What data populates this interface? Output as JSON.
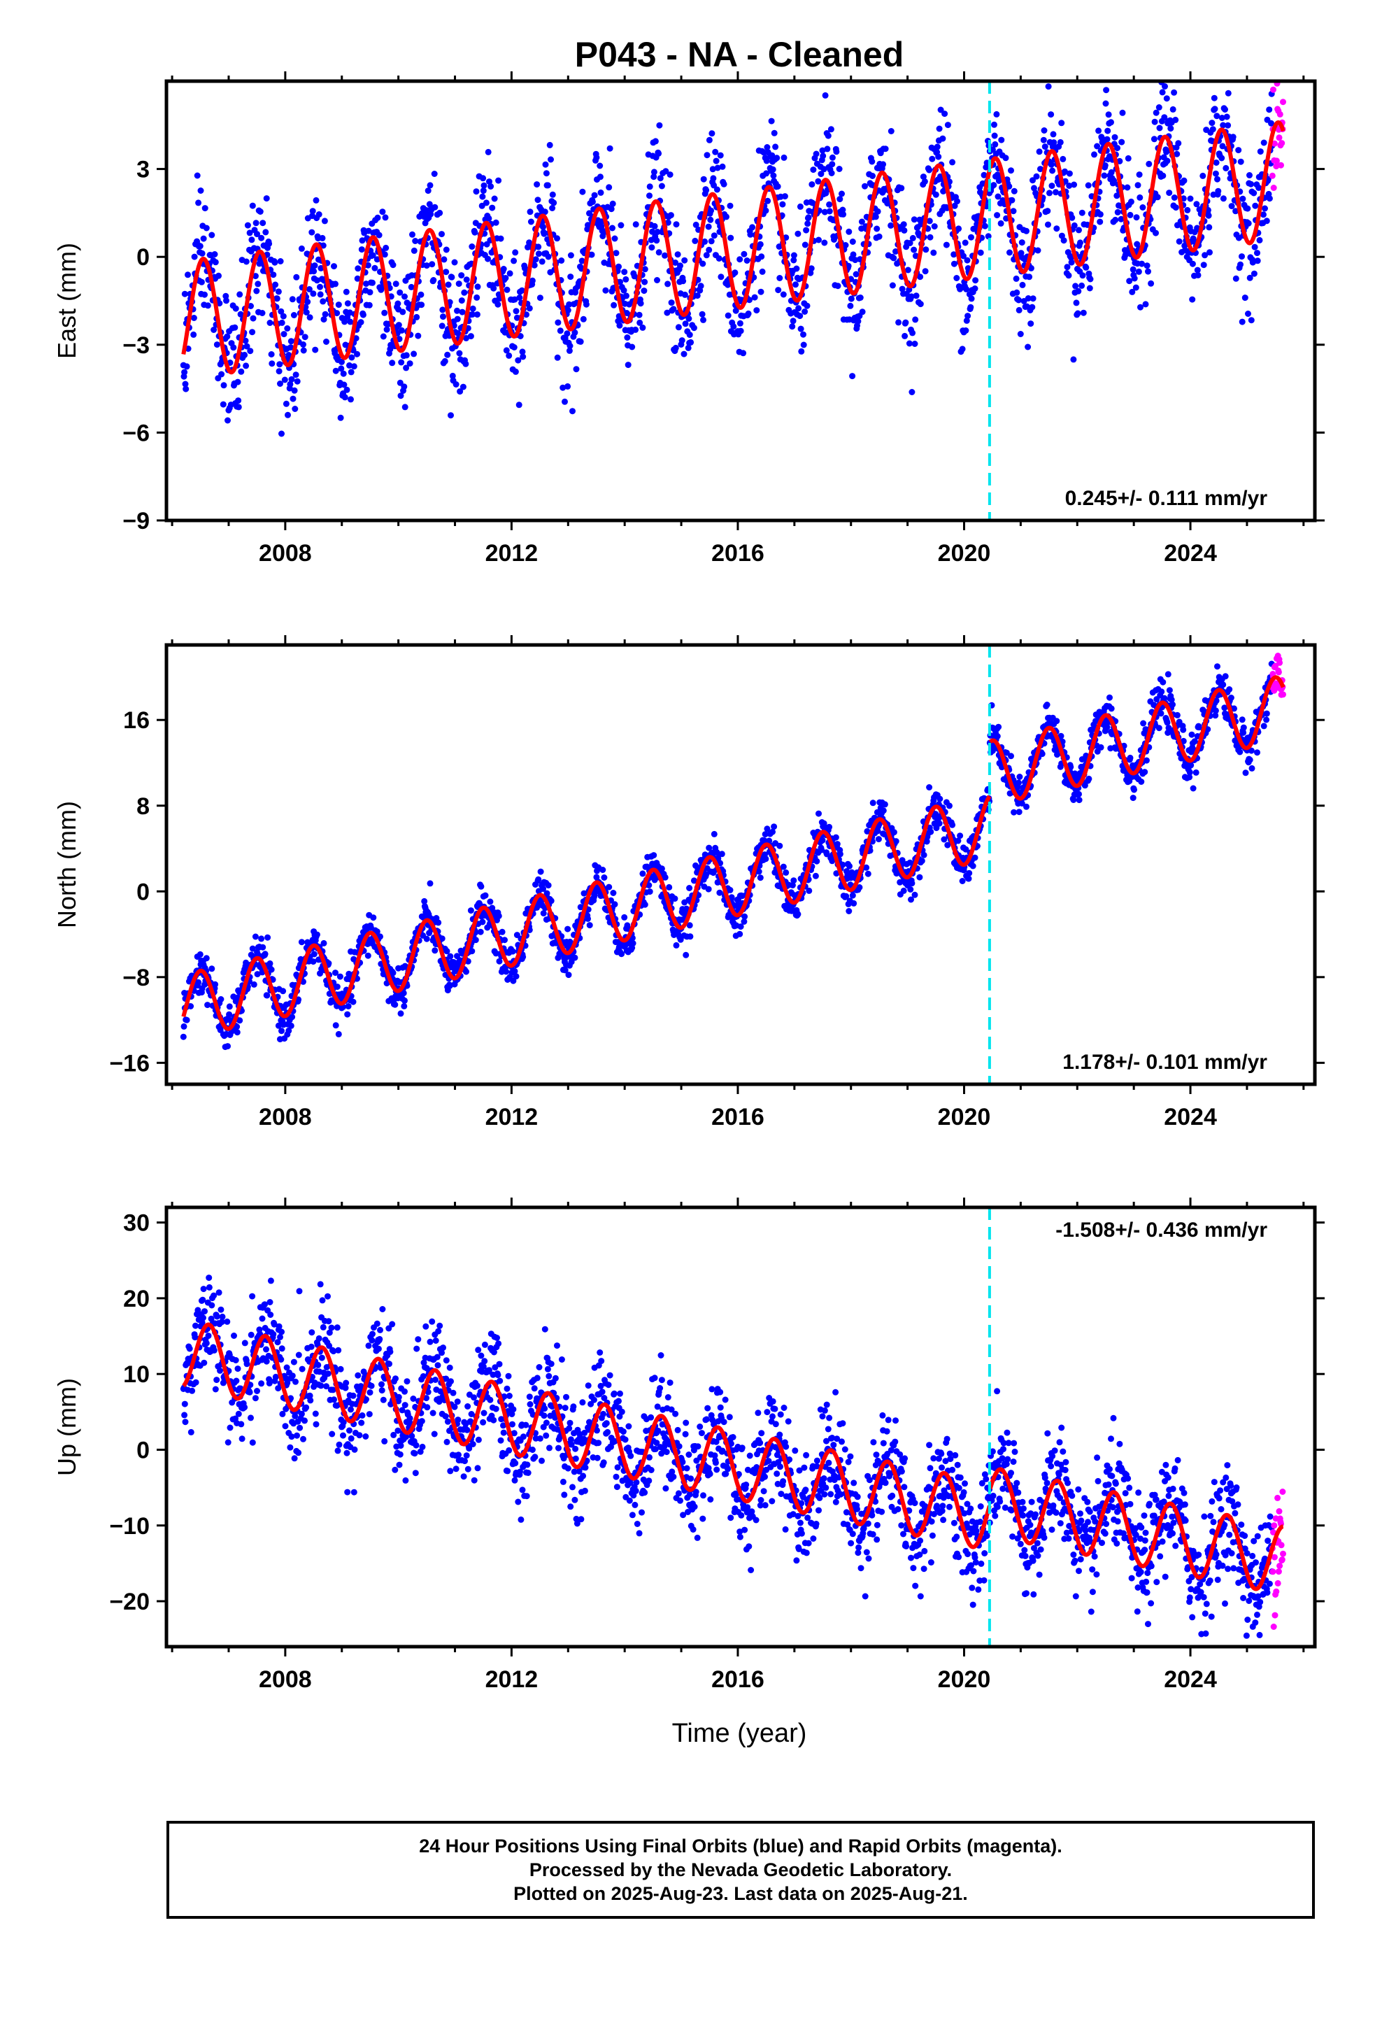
{
  "title": "P043  - NA - Cleaned",
  "colors": {
    "final_orbits": "#0000ff",
    "rapid_orbits": "#ff00ff",
    "model_fit": "#ff0000",
    "event_line": "#00e5ee",
    "frame": "#000000"
  },
  "x_axis": {
    "label": "Time (year)",
    "ticks": [
      2008,
      2012,
      2016,
      2020,
      2024
    ],
    "range": [
      2005.9,
      2026.2
    ]
  },
  "chart_data": [
    {
      "type": "scatter",
      "panel": "east",
      "ylabel": "East (mm)",
      "yticks": [
        3,
        0,
        -3,
        -6,
        -9
      ],
      "ylim": [
        -9,
        6
      ],
      "xlim": [
        2005.9,
        2026.2
      ],
      "rate_annotation": "0.245+/- 0.111 mm/yr",
      "annotation_position": "bottom-right",
      "event_line_year": 2020.45,
      "model": {
        "intercept_2006": -2.2,
        "rate_mm_per_yr": 0.245,
        "offset_at_event": 0.0,
        "annual_amplitude": 2.0,
        "annual_phase_peak_year_fraction": 0.55,
        "scatter_sd": 1.1
      },
      "rapid_points_range": [
        2025.45,
        2025.64
      ],
      "series": [
        {
          "name": "Final Orbits",
          "color": "#0000ff",
          "x_range": [
            2006.2,
            2025.45
          ]
        },
        {
          "name": "Rapid Orbits",
          "color": "#ff00ff",
          "x_range": [
            2025.45,
            2025.64
          ]
        },
        {
          "name": "Model",
          "color": "#ff0000",
          "x_range": [
            2006.2,
            2025.64
          ]
        }
      ]
    },
    {
      "type": "scatter",
      "panel": "north",
      "ylabel": "North (mm)",
      "yticks": [
        16,
        8,
        0,
        -8,
        -16
      ],
      "ylim": [
        -18,
        23
      ],
      "xlim": [
        2005.9,
        2026.2
      ],
      "rate_annotation": "1.178+/- 0.101 mm/yr",
      "annotation_position": "bottom-right",
      "event_line_year": 2020.45,
      "model": {
        "intercept_2006": -11.0,
        "rate_mm_per_yr": 1.178,
        "offset_at_event": 5.0,
        "annual_amplitude": 3.0,
        "annual_phase_peak_year_fraction": 0.5,
        "scatter_sd": 1.0
      },
      "rapid_points_range": [
        2025.45,
        2025.64
      ],
      "series": [
        {
          "name": "Final Orbits",
          "color": "#0000ff",
          "x_range": [
            2006.2,
            2025.45
          ]
        },
        {
          "name": "Rapid Orbits",
          "color": "#ff00ff",
          "x_range": [
            2025.45,
            2025.64
          ]
        },
        {
          "name": "Model",
          "color": "#ff0000",
          "x_range": [
            2006.2,
            2025.64
          ]
        }
      ]
    },
    {
      "type": "scatter",
      "panel": "up",
      "ylabel": "Up (mm)",
      "yticks": [
        30,
        20,
        10,
        0,
        -10,
        -20
      ],
      "ylim": [
        -26,
        32
      ],
      "xlim": [
        2005.9,
        2026.2
      ],
      "rate_annotation": "-1.508+/- 0.436 mm/yr",
      "annotation_position": "top-right",
      "event_line_year": 2020.45,
      "model": {
        "intercept_2006": 13.0,
        "rate_mm_per_yr": -1.508,
        "offset_at_event": 2.0,
        "annual_amplitude": 4.5,
        "annual_phase_peak_year_fraction": 0.65,
        "scatter_sd": 3.5
      },
      "rapid_points_range": [
        2025.45,
        2025.64
      ],
      "series": [
        {
          "name": "Final Orbits",
          "color": "#0000ff",
          "x_range": [
            2006.2,
            2025.45
          ]
        },
        {
          "name": "Rapid Orbits",
          "color": "#ff00ff",
          "x_range": [
            2025.45,
            2025.64
          ]
        },
        {
          "name": "Model",
          "color": "#ff0000",
          "x_range": [
            2006.2,
            2025.64
          ]
        }
      ]
    }
  ],
  "footer": {
    "line1": "24 Hour Positions Using Final Orbits (blue) and Rapid Orbits (magenta).",
    "line2": "Processed by the Nevada Geodetic Laboratory.",
    "line3": "Plotted on 2025-Aug-23. Last data on 2025-Aug-21."
  }
}
